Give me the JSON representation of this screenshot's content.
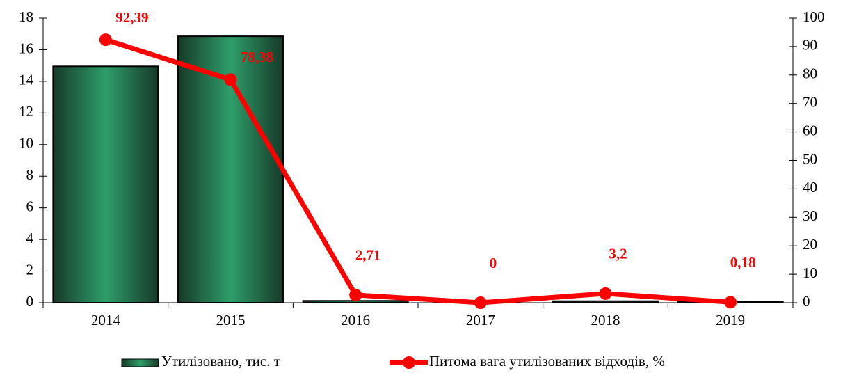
{
  "chart_data": {
    "type": "bar",
    "categories": [
      "2014",
      "2015",
      "2016",
      "2017",
      "2018",
      "2019"
    ],
    "series": [
      {
        "name": "Утилізовано, тис. т",
        "type": "bar",
        "color": "#2e9e6a",
        "values": [
          14.95,
          16.85,
          0.12,
          0,
          0.1,
          0.05
        ]
      },
      {
        "name": "Питома вага утилізованих відходів, %",
        "type": "line",
        "axis": "y2",
        "color": "#ff0000",
        "values": [
          92.39,
          78.38,
          2.71,
          0,
          3.2,
          0.18
        ],
        "value_labels": [
          "92,39",
          "78,38",
          "2,71",
          "0",
          "3,2",
          "0,18"
        ]
      }
    ],
    "ylim": [
      0,
      18
    ],
    "yticks": [
      0,
      2,
      4,
      6,
      8,
      10,
      12,
      14,
      16,
      18
    ],
    "y2lim": [
      0,
      100
    ],
    "y2ticks": [
      0,
      10,
      20,
      30,
      40,
      50,
      60,
      70,
      80,
      90,
      100
    ],
    "legend": "bottom"
  }
}
